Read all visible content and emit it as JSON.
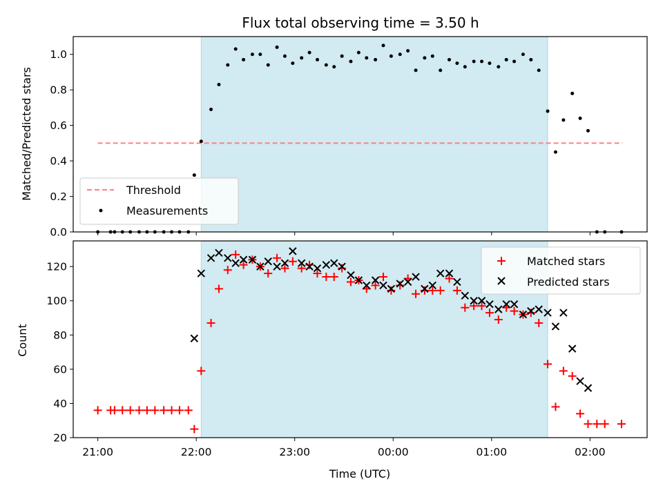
{
  "chart_data": [
    {
      "type": "scatter",
      "title": "Flux total observing time = 3.50 h",
      "ylabel": "Matched/Predicted stars",
      "xlabel": "",
      "x_ticks": [
        "21:00",
        "22:00",
        "23:00",
        "00:00",
        "01:00",
        "02:00"
      ],
      "xlim_hours": [
        20.75,
        26.58
      ],
      "ylim": [
        0,
        1.1
      ],
      "y_ticks": [
        0.0,
        0.2,
        0.4,
        0.6,
        0.8,
        1.0
      ],
      "grid": false,
      "legend_position": "lower-left",
      "observing_window_hours": [
        22.05,
        25.57
      ],
      "observing_window_color": "#add8e6",
      "threshold": {
        "name": "Threshold",
        "value": 0.5,
        "x_range_hours": [
          21.0,
          26.33
        ],
        "color": "#ff7f7f",
        "style": "dashed"
      },
      "series": [
        {
          "name": "Measurements",
          "color": "#000000",
          "marker": "dot",
          "x_hours": [
            21.0,
            21.13,
            21.17,
            21.25,
            21.33,
            21.42,
            21.5,
            21.58,
            21.67,
            21.75,
            21.83,
            21.92,
            21.98,
            22.05,
            22.15,
            22.23,
            22.32,
            22.4,
            22.48,
            22.57,
            22.65,
            22.73,
            22.82,
            22.9,
            22.98,
            23.07,
            23.15,
            23.23,
            23.32,
            23.4,
            23.48,
            23.57,
            23.65,
            23.73,
            23.82,
            23.9,
            23.98,
            24.07,
            24.15,
            24.23,
            24.32,
            24.4,
            24.48,
            24.57,
            24.65,
            24.73,
            24.82,
            24.9,
            24.98,
            25.07,
            25.15,
            25.23,
            25.32,
            25.4,
            25.48,
            25.57,
            25.65,
            25.73,
            25.82,
            25.9,
            25.98,
            26.07,
            26.15,
            26.32
          ],
          "y": [
            0.0,
            0.0,
            0.0,
            0.0,
            0.0,
            0.0,
            0.0,
            0.0,
            0.0,
            0.0,
            0.0,
            0.0,
            0.32,
            0.51,
            0.69,
            0.83,
            0.94,
            1.03,
            0.97,
            1.0,
            1.0,
            0.94,
            1.04,
            0.99,
            0.95,
            0.98,
            1.01,
            0.97,
            0.94,
            0.93,
            0.99,
            0.96,
            1.01,
            0.98,
            0.97,
            1.05,
            0.99,
            1.0,
            1.02,
            0.91,
            0.98,
            0.99,
            0.91,
            0.97,
            0.95,
            0.93,
            0.96,
            0.96,
            0.95,
            0.93,
            0.97,
            0.96,
            1.0,
            0.97,
            0.91,
            0.68,
            0.45,
            0.63,
            0.78,
            0.64,
            0.57,
            0.0,
            0.0,
            0.0
          ]
        }
      ]
    },
    {
      "type": "scatter",
      "title": "",
      "xlabel": "Time (UTC)",
      "ylabel": "Count",
      "x_ticks": [
        "21:00",
        "22:00",
        "23:00",
        "00:00",
        "01:00",
        "02:00"
      ],
      "xlim_hours": [
        20.75,
        26.58
      ],
      "ylim": [
        20,
        135
      ],
      "y_ticks": [
        20,
        40,
        60,
        80,
        100,
        120
      ],
      "grid": false,
      "legend_position": "top-right",
      "observing_window_hours": [
        22.05,
        25.57
      ],
      "observing_window_color": "#add8e6",
      "series": [
        {
          "name": "Matched stars",
          "color": "#ff0000",
          "marker": "plus",
          "x_hours": [
            21.0,
            21.13,
            21.17,
            21.25,
            21.33,
            21.42,
            21.5,
            21.58,
            21.67,
            21.75,
            21.83,
            21.92,
            21.98,
            22.05,
            22.15,
            22.23,
            22.32,
            22.4,
            22.48,
            22.57,
            22.65,
            22.73,
            22.82,
            22.9,
            22.98,
            23.07,
            23.15,
            23.23,
            23.32,
            23.4,
            23.48,
            23.57,
            23.65,
            23.73,
            23.82,
            23.9,
            23.98,
            24.07,
            24.15,
            24.23,
            24.32,
            24.4,
            24.48,
            24.57,
            24.65,
            24.73,
            24.82,
            24.9,
            24.98,
            25.07,
            25.15,
            25.23,
            25.32,
            25.4,
            25.48,
            25.57,
            25.65,
            25.73,
            25.82,
            25.9,
            25.98,
            26.07,
            26.15,
            26.32
          ],
          "y": [
            36,
            36,
            36,
            36,
            36,
            36,
            36,
            36,
            36,
            36,
            36,
            36,
            25,
            59,
            87,
            107,
            118,
            127,
            121,
            124,
            120,
            116,
            125,
            119,
            123,
            119,
            121,
            116,
            114,
            114,
            119,
            111,
            112,
            107,
            109,
            114,
            106,
            109,
            113,
            104,
            106,
            106,
            106,
            113,
            106,
            96,
            97,
            97,
            93,
            89,
            96,
            94,
            92,
            93,
            87,
            63,
            38,
            59,
            56,
            34,
            28,
            28,
            28,
            28
          ]
        },
        {
          "name": "Predicted stars",
          "color": "#000000",
          "marker": "x",
          "x_hours": [
            21.98,
            22.05,
            22.15,
            22.23,
            22.32,
            22.4,
            22.48,
            22.57,
            22.65,
            22.73,
            22.82,
            22.9,
            22.98,
            23.07,
            23.15,
            23.23,
            23.32,
            23.4,
            23.48,
            23.57,
            23.65,
            23.73,
            23.82,
            23.9,
            23.98,
            24.07,
            24.15,
            24.23,
            24.32,
            24.4,
            24.48,
            24.57,
            24.65,
            24.73,
            24.82,
            24.9,
            24.98,
            25.07,
            25.15,
            25.23,
            25.32,
            25.4,
            25.48,
            25.57,
            25.65,
            25.73,
            25.82,
            25.9,
            25.98
          ],
          "y": [
            78,
            116,
            125,
            128,
            125,
            122,
            124,
            124,
            120,
            123,
            120,
            122,
            129,
            122,
            120,
            119,
            121,
            122,
            120,
            115,
            112,
            109,
            112,
            109,
            107,
            110,
            111,
            114,
            107,
            109,
            116,
            116,
            111,
            103,
            100,
            100,
            98,
            95,
            98,
            98,
            92,
            94,
            95,
            93,
            85,
            93,
            72,
            53,
            49
          ]
        }
      ]
    }
  ]
}
